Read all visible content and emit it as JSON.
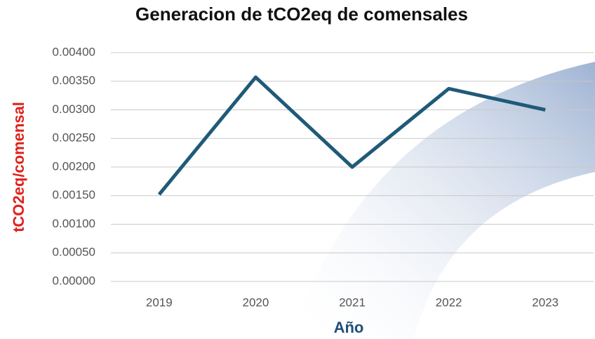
{
  "chart_data": {
    "type": "line",
    "title": "Generacion de tCO2eq de comensales",
    "x_label": "Año",
    "y_label": "tCO2eq/comensal",
    "categories": [
      "2019",
      "2020",
      "2021",
      "2022",
      "2023"
    ],
    "series": [
      {
        "name": "tCO2eq/comensal",
        "color": "#1f5a78",
        "values": [
          0.00152,
          0.00357,
          0.002,
          0.00337,
          0.003
        ]
      }
    ],
    "ylim": [
      0,
      0.004
    ],
    "yticks": [
      {
        "value": 0,
        "label": "0.00000"
      },
      {
        "value": 0.0005,
        "label": "0.00050"
      },
      {
        "value": 0.001,
        "label": "0.00100"
      },
      {
        "value": 0.0015,
        "label": "0.00150"
      },
      {
        "value": 0.002,
        "label": "0.00200"
      },
      {
        "value": 0.0025,
        "label": "0.00250"
      },
      {
        "value": 0.003,
        "label": "0.00300"
      },
      {
        "value": 0.0035,
        "label": "0.00350"
      },
      {
        "value": 0.004,
        "label": "0.00400"
      }
    ],
    "grid": true
  }
}
